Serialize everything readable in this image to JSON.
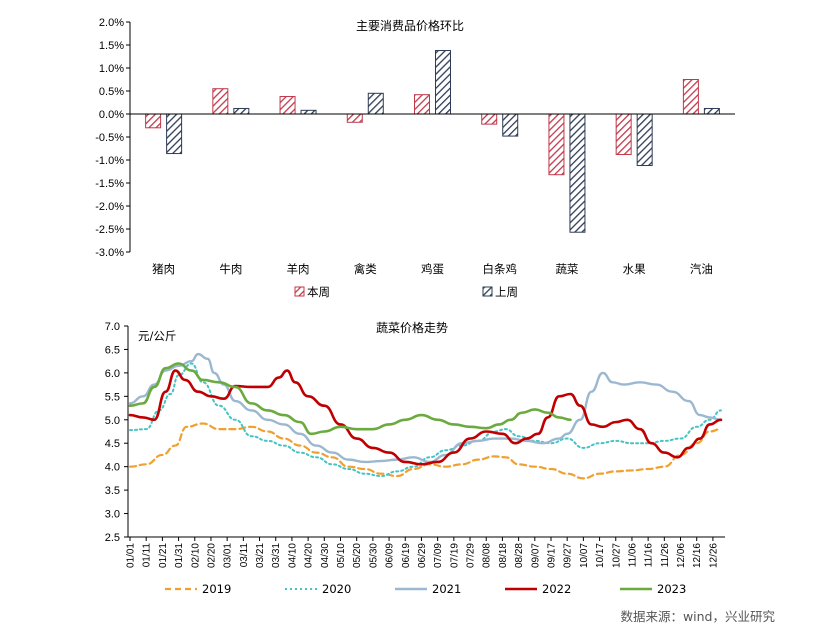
{
  "chart_data": [
    {
      "type": "bar",
      "title": "主要消费品价格环比",
      "categories": [
        "猪肉",
        "牛肉",
        "羊肉",
        "禽类",
        "鸡蛋",
        "白条鸡",
        "蔬菜",
        "水果",
        "汽油"
      ],
      "series": [
        {
          "name": "本周",
          "color": "#c0394b",
          "values": [
            -0.3,
            0.55,
            0.38,
            -0.18,
            0.42,
            -0.22,
            -1.32,
            -0.88,
            0.75
          ]
        },
        {
          "name": "上周",
          "color": "#2e3c55",
          "values": [
            -0.86,
            0.12,
            0.08,
            0.45,
            1.38,
            -0.48,
            -2.57,
            -1.12,
            0.12
          ]
        }
      ],
      "yticks": [
        "2.0%",
        "1.5%",
        "1.0%",
        "0.5%",
        "0.0%",
        "-0.5%",
        "-1.0%",
        "-1.5%",
        "-2.0%",
        "-2.5%",
        "-3.0%"
      ],
      "ylim": [
        -3.0,
        2.0
      ],
      "grid": false,
      "legend_position": "bottom"
    },
    {
      "type": "line",
      "title": "蔬菜价格走势",
      "ylabel": "元/公斤",
      "ylim": [
        2.5,
        7.0
      ],
      "yticks": [
        "7.0",
        "6.5",
        "6.0",
        "5.5",
        "5.0",
        "4.5",
        "4.0",
        "3.5",
        "3.0",
        "2.5"
      ],
      "xticks": [
        "01/01",
        "01/11",
        "01/21",
        "01/31",
        "02/10",
        "02/20",
        "03/01",
        "03/11",
        "03/21",
        "03/31",
        "04/10",
        "04/20",
        "04/30",
        "05/10",
        "05/20",
        "05/30",
        "06/09",
        "06/19",
        "06/29",
        "07/09",
        "07/19",
        "07/29",
        "08/08",
        "08/18",
        "08/28",
        "09/07",
        "09/17",
        "09/27",
        "10/07",
        "10/17",
        "10/27",
        "11/06",
        "11/16",
        "11/26",
        "12/06",
        "12/16",
        "12/26"
      ],
      "grid": false,
      "legend_position": "bottom",
      "series": [
        {
          "name": "2019",
          "color": "#f0a030",
          "dash": "6,4",
          "width": 2.2,
          "points": [
            [
              0,
              4.0
            ],
            [
              10,
              4.05
            ],
            [
              20,
              4.25
            ],
            [
              28,
              4.45
            ],
            [
              35,
              4.85
            ],
            [
              45,
              4.92
            ],
            [
              55,
              4.8
            ],
            [
              65,
              4.8
            ],
            [
              75,
              4.85
            ],
            [
              85,
              4.75
            ],
            [
              95,
              4.6
            ],
            [
              105,
              4.45
            ],
            [
              115,
              4.3
            ],
            [
              125,
              4.2
            ],
            [
              135,
              4.0
            ],
            [
              145,
              3.95
            ],
            [
              155,
              3.85
            ],
            [
              165,
              3.8
            ],
            [
              175,
              3.95
            ],
            [
              185,
              4.05
            ],
            [
              195,
              4.0
            ],
            [
              205,
              4.05
            ],
            [
              215,
              4.15
            ],
            [
              225,
              4.22
            ],
            [
              232,
              4.2
            ],
            [
              240,
              4.05
            ],
            [
              250,
              4.0
            ],
            [
              260,
              3.95
            ],
            [
              270,
              3.85
            ],
            [
              280,
              3.75
            ],
            [
              290,
              3.85
            ],
            [
              300,
              3.9
            ],
            [
              310,
              3.92
            ],
            [
              320,
              3.95
            ],
            [
              330,
              4.0
            ],
            [
              340,
              4.25
            ],
            [
              350,
              4.5
            ],
            [
              358,
              4.75
            ],
            [
              365,
              4.8
            ]
          ]
        },
        {
          "name": "2020",
          "color": "#44c4c4",
          "dash": "2,3",
          "width": 2.0,
          "points": [
            [
              0,
              4.78
            ],
            [
              10,
              4.8
            ],
            [
              18,
              5.2
            ],
            [
              25,
              5.55
            ],
            [
              30,
              5.95
            ],
            [
              38,
              6.2
            ],
            [
              45,
              5.8
            ],
            [
              55,
              5.3
            ],
            [
              65,
              5.0
            ],
            [
              75,
              4.65
            ],
            [
              85,
              4.55
            ],
            [
              95,
              4.45
            ],
            [
              105,
              4.3
            ],
            [
              115,
              4.2
            ],
            [
              125,
              4.05
            ],
            [
              135,
              3.95
            ],
            [
              145,
              3.85
            ],
            [
              155,
              3.8
            ],
            [
              165,
              3.9
            ],
            [
              175,
              4.0
            ],
            [
              185,
              4.2
            ],
            [
              195,
              4.35
            ],
            [
              205,
              4.45
            ],
            [
              215,
              4.55
            ],
            [
              225,
              4.75
            ],
            [
              232,
              4.8
            ],
            [
              240,
              4.65
            ],
            [
              250,
              4.55
            ],
            [
              260,
              4.5
            ],
            [
              270,
              4.6
            ],
            [
              280,
              4.4
            ],
            [
              290,
              4.5
            ],
            [
              300,
              4.55
            ],
            [
              310,
              4.5
            ],
            [
              320,
              4.5
            ],
            [
              330,
              4.55
            ],
            [
              340,
              4.6
            ],
            [
              350,
              4.85
            ],
            [
              358,
              5.0
            ],
            [
              365,
              5.2
            ]
          ]
        },
        {
          "name": "2021",
          "color": "#9cb8d0",
          "dash": "",
          "width": 2.4,
          "points": [
            [
              0,
              5.35
            ],
            [
              8,
              5.5
            ],
            [
              15,
              5.75
            ],
            [
              22,
              6.05
            ],
            [
              30,
              6.15
            ],
            [
              38,
              6.25
            ],
            [
              42,
              6.4
            ],
            [
              48,
              6.3
            ],
            [
              52,
              6.0
            ],
            [
              58,
              5.75
            ],
            [
              65,
              5.4
            ],
            [
              75,
              5.2
            ],
            [
              85,
              5.0
            ],
            [
              95,
              4.9
            ],
            [
              105,
              4.7
            ],
            [
              115,
              4.45
            ],
            [
              125,
              4.3
            ],
            [
              135,
              4.15
            ],
            [
              145,
              4.1
            ],
            [
              155,
              4.12
            ],
            [
              165,
              4.15
            ],
            [
              175,
              4.2
            ],
            [
              185,
              4.1
            ],
            [
              195,
              4.25
            ],
            [
              205,
              4.5
            ],
            [
              215,
              4.55
            ],
            [
              225,
              4.6
            ],
            [
              235,
              4.6
            ],
            [
              245,
              4.55
            ],
            [
              255,
              4.5
            ],
            [
              265,
              4.6
            ],
            [
              270,
              4.7
            ],
            [
              278,
              5.0
            ],
            [
              285,
              5.6
            ],
            [
              292,
              6.0
            ],
            [
              298,
              5.8
            ],
            [
              305,
              5.75
            ],
            [
              315,
              5.8
            ],
            [
              325,
              5.75
            ],
            [
              335,
              5.6
            ],
            [
              345,
              5.4
            ],
            [
              352,
              5.1
            ],
            [
              358,
              5.05
            ],
            [
              365,
              5.0
            ]
          ]
        },
        {
          "name": "2022",
          "color": "#c00000",
          "dash": "",
          "width": 2.6,
          "points": [
            [
              0,
              5.1
            ],
            [
              8,
              5.05
            ],
            [
              15,
              5.0
            ],
            [
              22,
              5.6
            ],
            [
              28,
              6.05
            ],
            [
              34,
              5.85
            ],
            [
              42,
              5.6
            ],
            [
              50,
              5.5
            ],
            [
              58,
              5.45
            ],
            [
              65,
              5.72
            ],
            [
              75,
              5.7
            ],
            [
              85,
              5.7
            ],
            [
              92,
              5.9
            ],
            [
              97,
              6.05
            ],
            [
              102,
              5.8
            ],
            [
              110,
              5.5
            ],
            [
              120,
              5.3
            ],
            [
              130,
              4.9
            ],
            [
              140,
              4.6
            ],
            [
              150,
              4.4
            ],
            [
              160,
              4.3
            ],
            [
              170,
              4.1
            ],
            [
              180,
              4.05
            ],
            [
              190,
              4.1
            ],
            [
              200,
              4.3
            ],
            [
              210,
              4.6
            ],
            [
              220,
              4.75
            ],
            [
              230,
              4.7
            ],
            [
              238,
              4.5
            ],
            [
              245,
              4.6
            ],
            [
              252,
              4.7
            ],
            [
              258,
              5.05
            ],
            [
              265,
              5.5
            ],
            [
              272,
              5.55
            ],
            [
              278,
              5.3
            ],
            [
              285,
              4.9
            ],
            [
              292,
              4.85
            ],
            [
              300,
              4.95
            ],
            [
              307,
              5.0
            ],
            [
              315,
              4.8
            ],
            [
              322,
              4.5
            ],
            [
              330,
              4.3
            ],
            [
              338,
              4.2
            ],
            [
              345,
              4.4
            ],
            [
              352,
              4.6
            ],
            [
              358,
              4.9
            ],
            [
              365,
              5.0
            ]
          ]
        },
        {
          "name": "2023",
          "color": "#6aaa3e",
          "dash": "",
          "width": 2.6,
          "points": [
            [
              0,
              5.3
            ],
            [
              8,
              5.35
            ],
            [
              15,
              5.7
            ],
            [
              22,
              6.1
            ],
            [
              30,
              6.2
            ],
            [
              38,
              6.05
            ],
            [
              45,
              5.85
            ],
            [
              55,
              5.8
            ],
            [
              65,
              5.7
            ],
            [
              75,
              5.35
            ],
            [
              85,
              5.2
            ],
            [
              95,
              5.1
            ],
            [
              105,
              4.95
            ],
            [
              112,
              4.7
            ],
            [
              120,
              4.75
            ],
            [
              130,
              4.85
            ],
            [
              140,
              4.8
            ],
            [
              150,
              4.8
            ],
            [
              160,
              4.9
            ],
            [
              170,
              5.0
            ],
            [
              180,
              5.1
            ],
            [
              190,
              5.0
            ],
            [
              200,
              4.9
            ],
            [
              210,
              4.85
            ],
            [
              220,
              4.82
            ],
            [
              228,
              4.9
            ],
            [
              235,
              5.0
            ],
            [
              242,
              5.15
            ],
            [
              250,
              5.22
            ],
            [
              258,
              5.15
            ],
            [
              265,
              5.05
            ],
            [
              272,
              5.0
            ]
          ]
        }
      ]
    }
  ],
  "source_text": "数据来源：wind，兴业研究"
}
